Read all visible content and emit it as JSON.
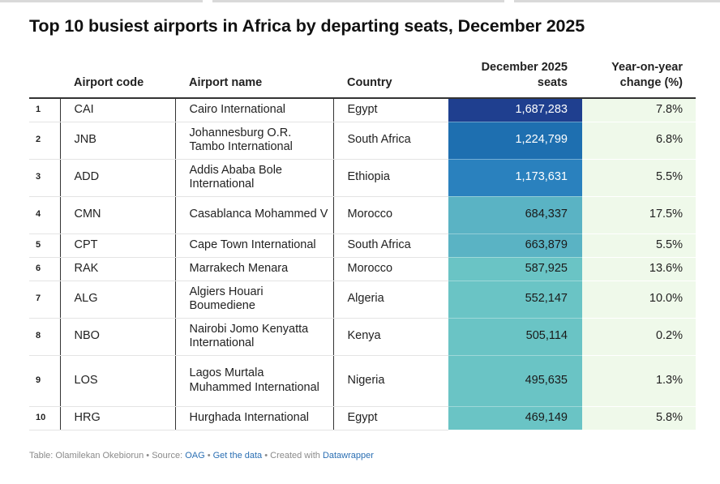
{
  "title": "Top 10 busiest airports in Africa by departing seats, December 2025",
  "columns": {
    "rank": "",
    "code": "Airport code",
    "name": "Airport name",
    "country": "Country",
    "seats_line1": "December 2025",
    "seats_line2": "seats",
    "yoy_line1": "Year-on-year",
    "yoy_line2": "change (%)"
  },
  "colors": {
    "seats_scale": [
      "#1f3f8f",
      "#1e6fb0",
      "#2a81be",
      "#5ab3c4",
      "#6ac4c5"
    ],
    "yoy_background": "#eff9ea"
  },
  "chart_data": {
    "type": "table",
    "rows": [
      {
        "rank": "1",
        "code": "CAI",
        "name": "Cairo International",
        "country": "Egypt",
        "seats": 1687283,
        "seats_label": "1,687,283",
        "yoy": "7.8%"
      },
      {
        "rank": "2",
        "code": "JNB",
        "name": "Johannesburg O.R. Tambo International",
        "country": "South Africa",
        "seats": 1224799,
        "seats_label": "1,224,799",
        "yoy": "6.8%"
      },
      {
        "rank": "3",
        "code": "ADD",
        "name": "Addis Ababa Bole International",
        "country": "Ethiopia",
        "seats": 1173631,
        "seats_label": "1,173,631",
        "yoy": "5.5%"
      },
      {
        "rank": "4",
        "code": "CMN",
        "name": "Casablanca Mohammed V",
        "country": "Morocco",
        "seats": 684337,
        "seats_label": "684,337",
        "yoy": "17.5%"
      },
      {
        "rank": "5",
        "code": "CPT",
        "name": "Cape Town International",
        "country": "South Africa",
        "seats": 663879,
        "seats_label": "663,879",
        "yoy": "5.5%"
      },
      {
        "rank": "6",
        "code": "RAK",
        "name": "Marrakech Menara",
        "country": "Morocco",
        "seats": 587925,
        "seats_label": "587,925",
        "yoy": "13.6%"
      },
      {
        "rank": "7",
        "code": "ALG",
        "name": "Algiers Houari Boumediene",
        "country": "Algeria",
        "seats": 552147,
        "seats_label": "552,147",
        "yoy": "10.0%"
      },
      {
        "rank": "8",
        "code": "NBO",
        "name": "Nairobi Jomo Kenyatta International",
        "country": "Kenya",
        "seats": 505114,
        "seats_label": "505,114",
        "yoy": "0.2%"
      },
      {
        "rank": "9",
        "code": "LOS",
        "name": "Lagos Murtala Muhammed International",
        "country": "Nigeria",
        "seats": 495635,
        "seats_label": "495,635",
        "yoy": "1.3%"
      },
      {
        "rank": "10",
        "code": "HRG",
        "name": "Hurghada International",
        "country": "Egypt",
        "seats": 469149,
        "seats_label": "469,149",
        "yoy": "5.8%"
      }
    ]
  },
  "footer": {
    "table_credit": "Table: Olamilekan Okebiorun",
    "sep1": " • Source: ",
    "source_link": "OAG",
    "sep2": " • ",
    "data_link": "Get the data",
    "sep3": " • Created with ",
    "tool_link": "Datawrapper"
  }
}
